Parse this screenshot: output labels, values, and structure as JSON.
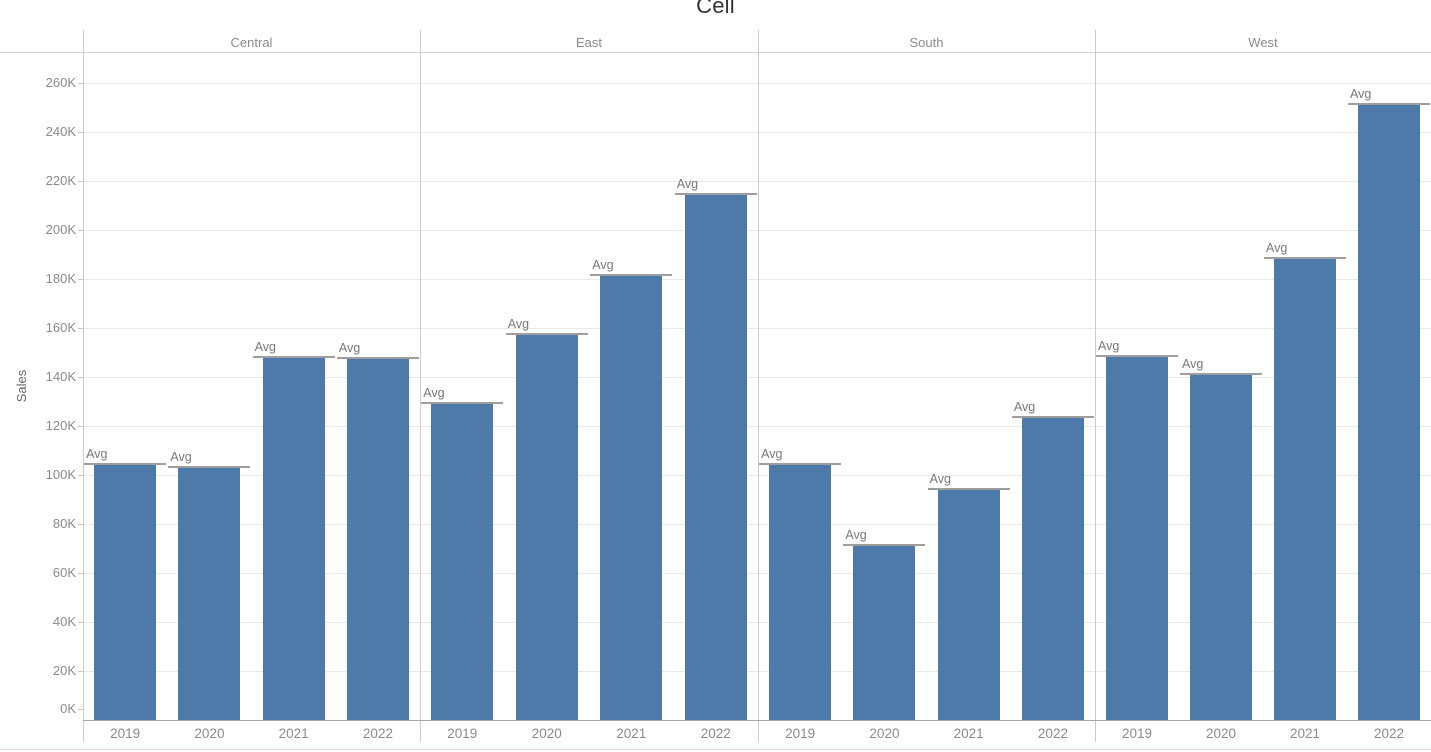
{
  "title": "Cell",
  "y_axis": {
    "label": "Sales",
    "ticks": [
      {
        "label": "0K",
        "v": 0
      },
      {
        "label": "20K",
        "v": 20
      },
      {
        "label": "40K",
        "v": 40
      },
      {
        "label": "60K",
        "v": 60
      },
      {
        "label": "80K",
        "v": 80
      },
      {
        "label": "100K",
        "v": 100
      },
      {
        "label": "120K",
        "v": 120
      },
      {
        "label": "140K",
        "v": 140
      },
      {
        "label": "160K",
        "v": 160
      },
      {
        "label": "180K",
        "v": 180
      },
      {
        "label": "200K",
        "v": 200
      },
      {
        "label": "220K",
        "v": 220
      },
      {
        "label": "240K",
        "v": 240
      },
      {
        "label": "260K",
        "v": 260
      }
    ]
  },
  "avg_label": "Avg",
  "panes": [
    {
      "region": "Central",
      "years": [
        "2019",
        "2020",
        "2021",
        "2022"
      ],
      "values_k": [
        104.0,
        102.7,
        147.7,
        147.3
      ]
    },
    {
      "region": "East",
      "years": [
        "2019",
        "2020",
        "2021",
        "2022"
      ],
      "values_k": [
        128.8,
        157.0,
        181.2,
        214.2
      ]
    },
    {
      "region": "South",
      "years": [
        "2019",
        "2020",
        "2021",
        "2022"
      ],
      "values_k": [
        103.9,
        71.0,
        93.8,
        123.3
      ]
    },
    {
      "region": "West",
      "years": [
        "2019",
        "2020",
        "2021",
        "2022"
      ],
      "values_k": [
        148.2,
        140.6,
        188.1,
        251.0
      ]
    }
  ],
  "colors": {
    "bar": "#4e7aa9",
    "avg_line": "#9e9e9e",
    "grid": "#e9e9e9",
    "divider": "#cccccc",
    "axis_line": "#a6a6a6",
    "muted_text": "#8a8a8a",
    "title_text": "#343434",
    "bottom_accent": "#eed9d9"
  },
  "chart_data": {
    "type": "bar",
    "title": "Cell",
    "xlabel": "",
    "ylabel": "Sales",
    "ylim": [
      0,
      260000
    ],
    "grid": true,
    "legend": false,
    "categories": [
      "2019",
      "2020",
      "2021",
      "2022"
    ],
    "series": [
      {
        "name": "Central",
        "values": [
          104000,
          102700,
          147700,
          147300
        ]
      },
      {
        "name": "East",
        "values": [
          128800,
          157000,
          181200,
          214200
        ]
      },
      {
        "name": "South",
        "values": [
          103900,
          71000,
          93800,
          123300
        ]
      },
      {
        "name": "West",
        "values": [
          148200,
          140600,
          188100,
          251000
        ]
      }
    ],
    "annotations": "Avg reference line drawn at the top of every bar (per-cell average), labeled 'Avg'"
  }
}
